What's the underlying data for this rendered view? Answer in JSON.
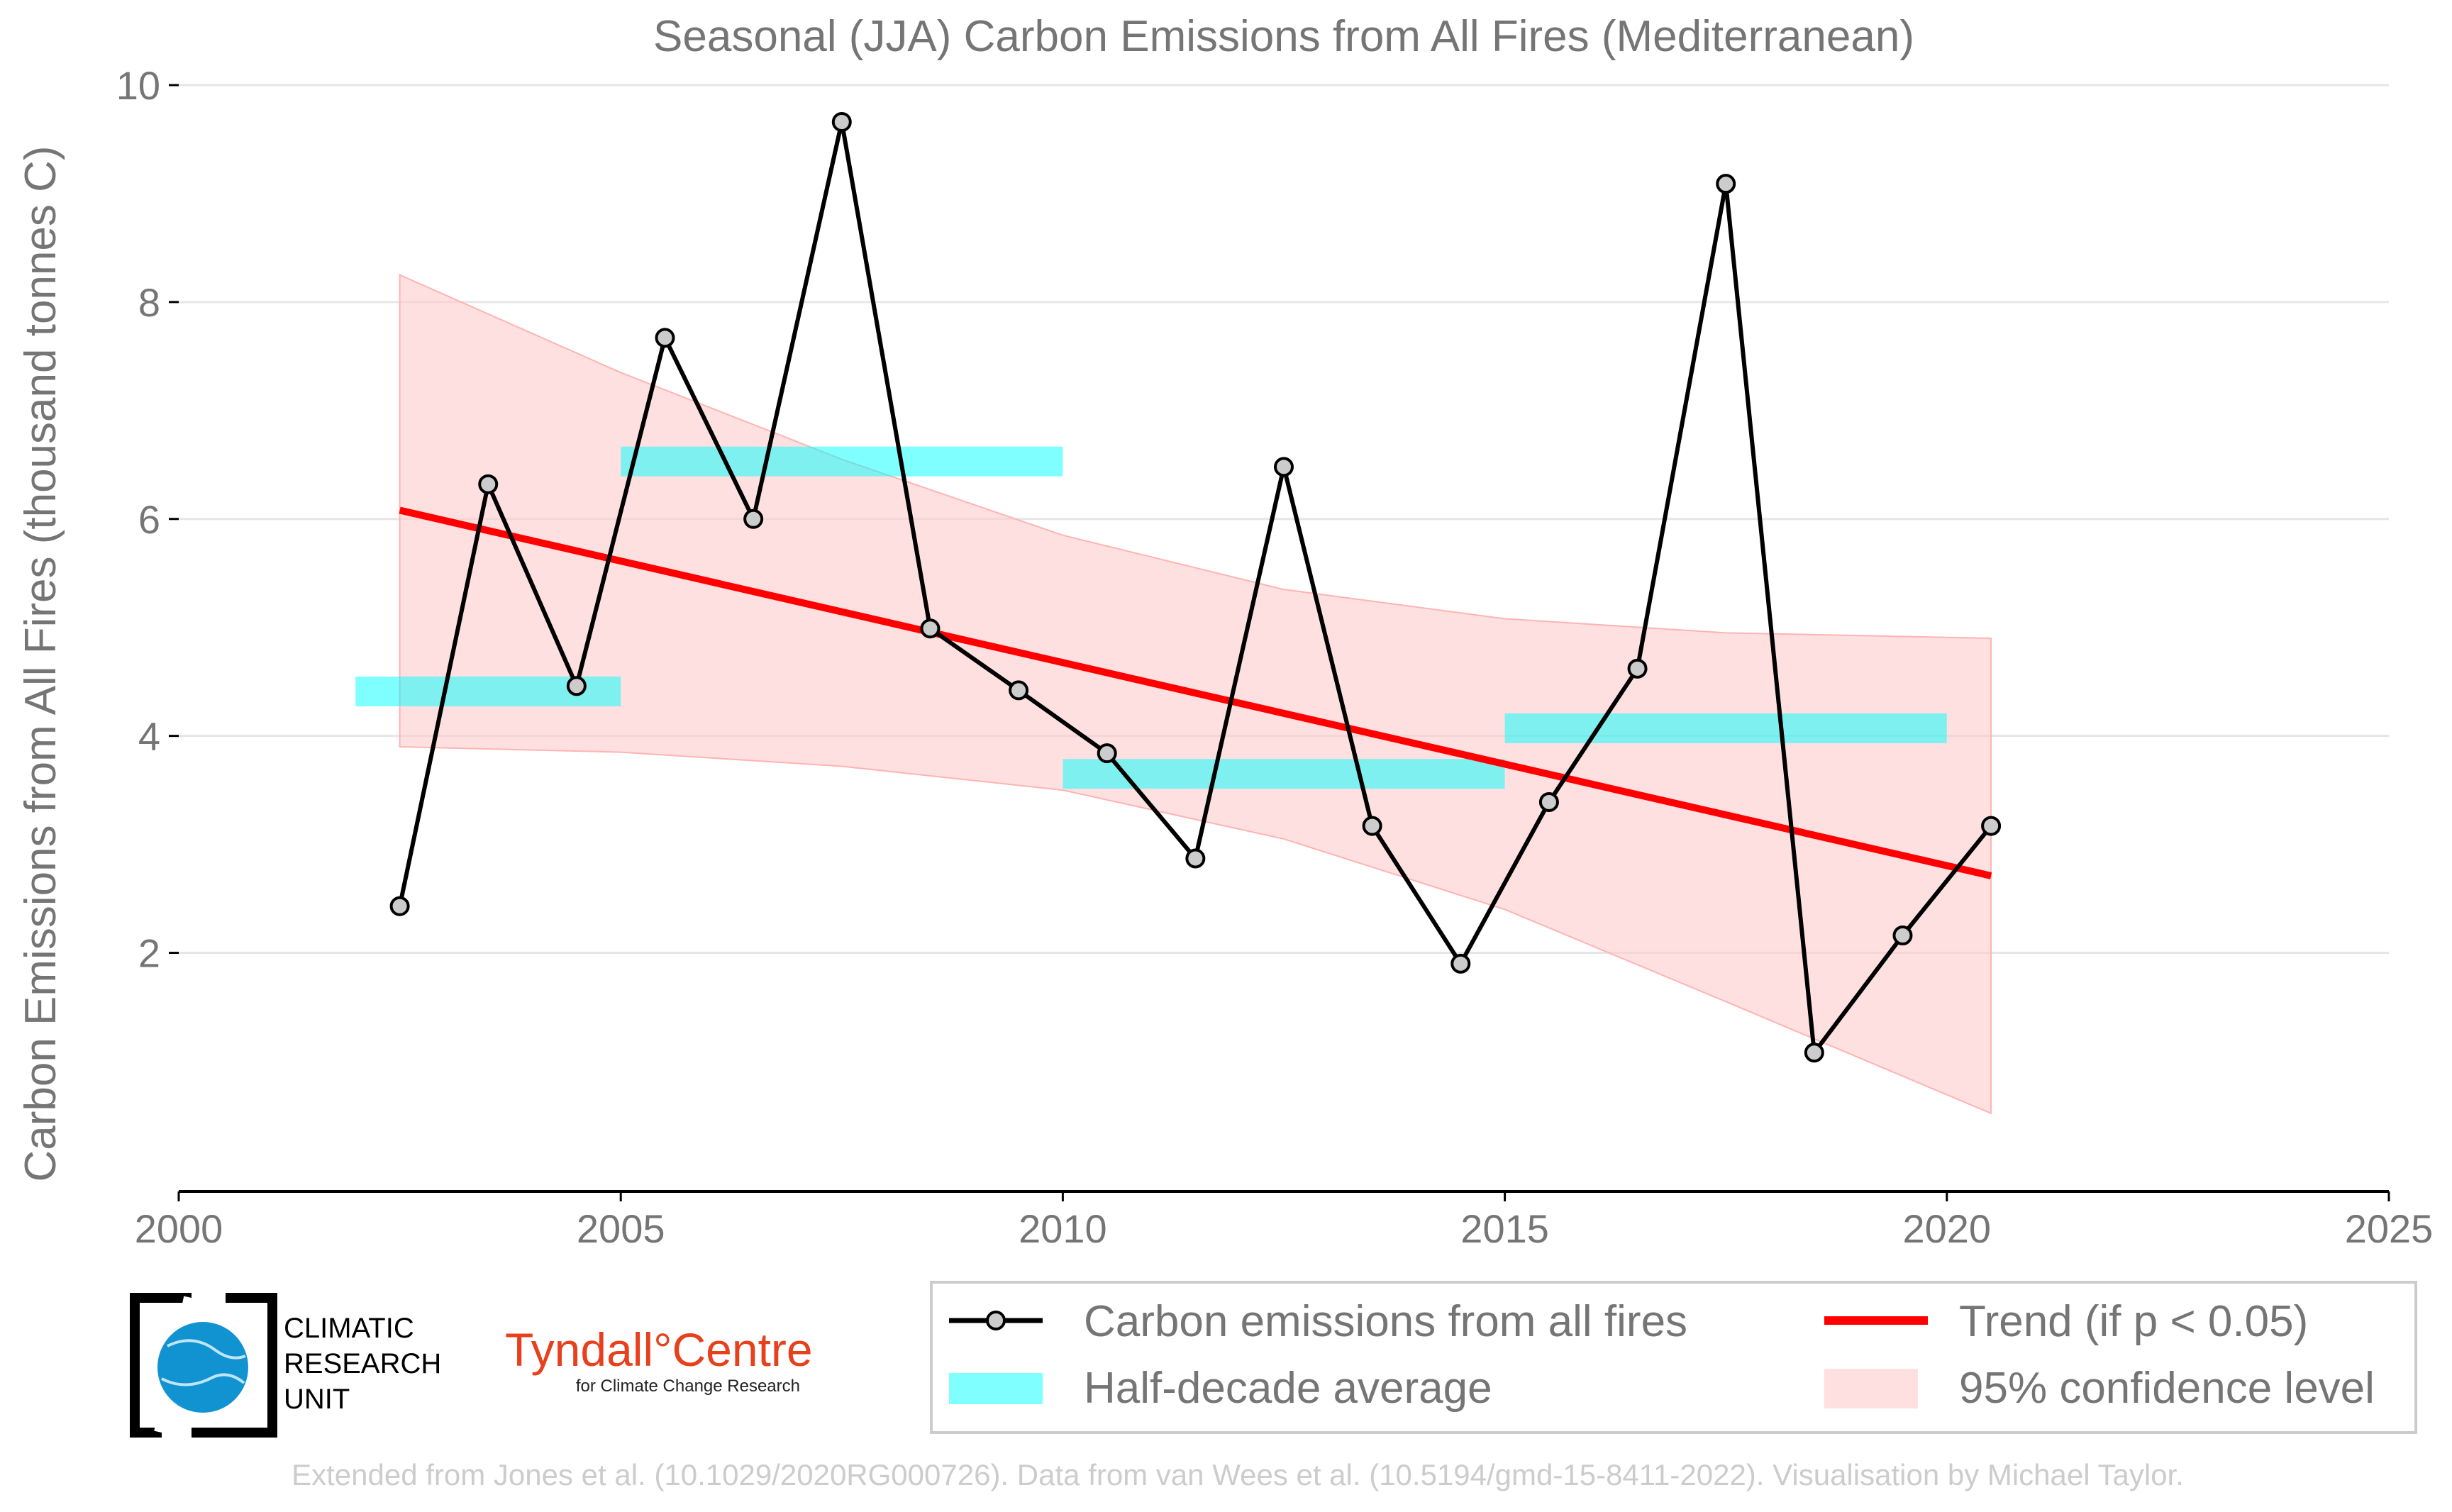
{
  "chart_data": {
    "type": "line",
    "title": "Seasonal (JJA) Carbon Emissions from All Fires (Mediterranean)",
    "xlabel": "",
    "ylabel": "Carbon Emissions from All Fires (thousand tonnes C)",
    "xlim": [
      2000,
      2025
    ],
    "ylim": [
      -0.2,
      10
    ],
    "x_ticks": [
      "2000",
      "2005",
      "2010",
      "2015",
      "2020",
      "2025"
    ],
    "y_ticks": [
      "2",
      "4",
      "6",
      "8",
      "10"
    ],
    "grid": "horizontal",
    "legend_position": "bottom-right",
    "series": [
      {
        "name": "Carbon emissions from all fires",
        "color": "#000000",
        "x": [
          2002.5,
          2003.5,
          2004.5,
          2005.5,
          2006.5,
          2007.5,
          2008.5,
          2009.5,
          2010.5,
          2011.5,
          2012.5,
          2013.5,
          2014.5,
          2015.5,
          2016.5,
          2017.5,
          2018.5,
          2019.5,
          2020.5
        ],
        "values": [
          2.43,
          6.32,
          4.46,
          7.67,
          6.0,
          9.66,
          4.99,
          4.42,
          3.84,
          2.87,
          6.48,
          3.17,
          1.9,
          3.39,
          4.62,
          9.09,
          1.08,
          2.16,
          3.17
        ]
      },
      {
        "name": "Half-decade average",
        "color": "#00ffff",
        "segments": [
          {
            "x": [
              2002.0,
              2005.0
            ],
            "value": 4.41
          },
          {
            "x": [
              2005.0,
              2010.0
            ],
            "value": 6.53
          },
          {
            "x": [
              2010.0,
              2015.0
            ],
            "value": 3.65
          },
          {
            "x": [
              2015.0,
              2020.0
            ],
            "value": 4.07
          }
        ]
      },
      {
        "name": "Trend (if p < 0.05)",
        "color": "#ff0000",
        "x": [
          2002.5,
          2020.5
        ],
        "values": [
          6.08,
          2.71
        ]
      },
      {
        "name": "95% confidence level",
        "color": "#ffcccc",
        "x": [
          2002.5,
          2005.0,
          2007.5,
          2010.0,
          2012.5,
          2015.0,
          2017.5,
          2020.5
        ],
        "upper": [
          8.25,
          7.35,
          6.55,
          5.85,
          5.35,
          5.08,
          4.95,
          4.9
        ],
        "lower": [
          3.9,
          3.85,
          3.72,
          3.5,
          3.05,
          2.4,
          1.55,
          0.52
        ]
      }
    ],
    "legend": [
      {
        "label": "Carbon emissions from all fires",
        "kind": "line-marker"
      },
      {
        "label": "Trend (if p < 0.05)",
        "kind": "line-red"
      },
      {
        "label": "Half-decade average",
        "kind": "patch-cyan"
      },
      {
        "label": "95% confidence level",
        "kind": "patch-pink"
      }
    ]
  },
  "logos": {
    "cru": [
      "CLIMATIC",
      "RESEARCH",
      "UNIT"
    ],
    "tyndall_main": "Tyndall°Centre",
    "tyndall_sub": "for Climate Change Research"
  },
  "credit": "Extended from Jones et al. (10.1029/2020RG000726). Data from van Wees et al. (10.5194/gmd-15-8411-2022). Visualisation by Michael Taylor."
}
